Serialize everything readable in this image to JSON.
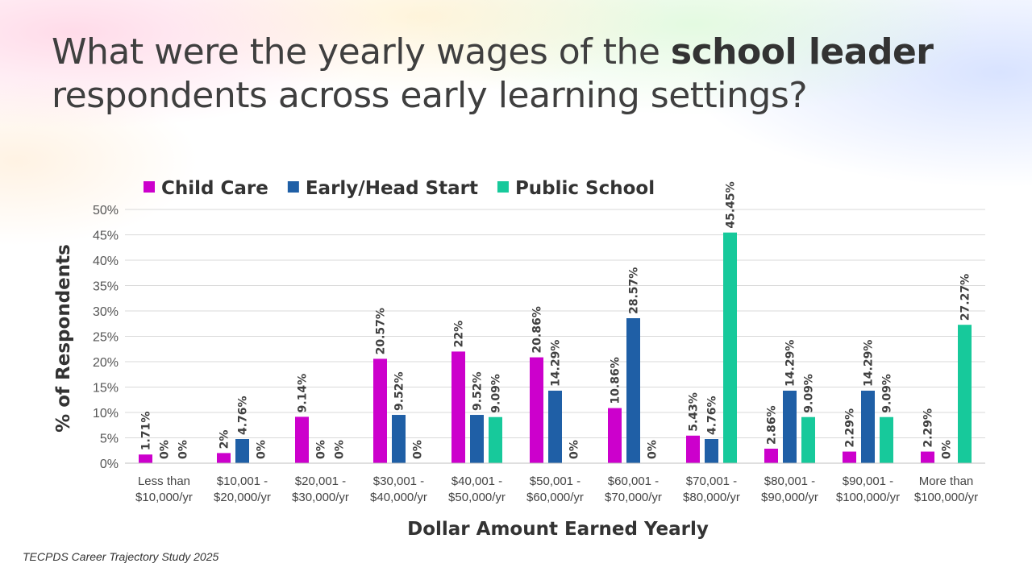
{
  "slide": {
    "title_parts": [
      {
        "text": "What were the yearly wages of the ",
        "bold": false
      },
      {
        "text": "school leader",
        "bold": true
      },
      {
        "text": " respondents across early learning settings?",
        "bold": false
      }
    ],
    "source": "TECPDS Career Trajectory Study 2025"
  },
  "colors": {
    "child_care": "#cc00cc",
    "early_head_start": "#1f5fa6",
    "public_school": "#17c99b",
    "gridline": "#d9d9d9",
    "axis": "#bfbfbf"
  },
  "chart_data": {
    "type": "bar",
    "xlabel": "Dollar Amount Earned Yearly",
    "ylabel": "% of Respondents",
    "ylim": [
      0,
      50
    ],
    "yticks": [
      0,
      5,
      10,
      15,
      20,
      25,
      30,
      35,
      40,
      45,
      50
    ],
    "ytick_suffix": "%",
    "grid": true,
    "legend_position": "top-left",
    "categories": [
      [
        "Less than",
        "$10,000/yr"
      ],
      [
        "$10,001 -",
        "$20,000/yr"
      ],
      [
        "$20,001 -",
        "$30,000/yr"
      ],
      [
        "$30,001 -",
        "$40,000/yr"
      ],
      [
        "$40,001 -",
        "$50,000/yr"
      ],
      [
        "$50,001 -",
        "$60,000/yr"
      ],
      [
        "$60,001 -",
        "$70,000/yr"
      ],
      [
        "$70,001 -",
        "$80,000/yr"
      ],
      [
        "$80,001 -",
        "$90,000/yr"
      ],
      [
        "$90,001 -",
        "$100,000/yr"
      ],
      [
        "More than",
        "$100,000/yr"
      ]
    ],
    "series": [
      {
        "name": "Child Care",
        "color": "#cc00cc",
        "values": [
          1.71,
          2,
          9.14,
          20.57,
          22,
          20.86,
          10.86,
          5.43,
          2.86,
          2.29,
          2.29
        ],
        "labels": [
          "1.71%",
          "2%",
          "9.14%",
          "20.57%",
          "22%",
          "20.86%",
          "10.86%",
          "5.43%",
          "2.86%",
          "2.29%",
          "2.29%"
        ]
      },
      {
        "name": "Early/Head Start",
        "color": "#1f5fa6",
        "values": [
          0,
          4.76,
          0,
          9.52,
          9.52,
          14.29,
          28.57,
          4.76,
          14.29,
          14.29,
          0
        ],
        "labels": [
          "0%",
          "4.76%",
          "0%",
          "9.52%",
          "9.52%",
          "14.29%",
          "28.57%",
          "4.76%",
          "14.29%",
          "14.29%",
          "0%"
        ]
      },
      {
        "name": "Public School",
        "color": "#17c99b",
        "values": [
          0,
          0,
          0,
          0,
          9.09,
          0,
          0,
          45.45,
          9.09,
          9.09,
          27.27
        ],
        "labels": [
          "0%",
          "0%",
          "0%",
          "0%",
          "9.09%",
          "0%",
          "0%",
          "45.45%",
          "9.09%",
          "9.09%",
          "27.27%"
        ]
      }
    ]
  }
}
